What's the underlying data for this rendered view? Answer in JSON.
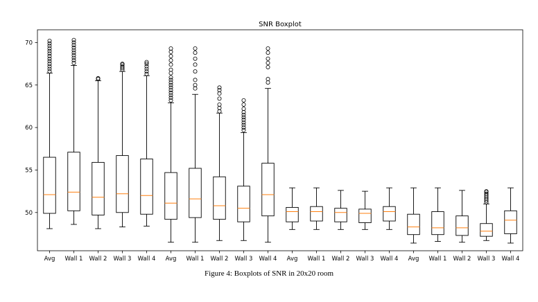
{
  "chart_data": {
    "type": "boxplot",
    "title": "SNR Boxplot",
    "xlabel": "",
    "ylabel": "",
    "ylim": [
      45.5,
      71.5
    ],
    "yticks": [
      50,
      55,
      60,
      65,
      70
    ],
    "categories": [
      "Avg",
      "Wall 1",
      "Wall 2",
      "Wall 3",
      "Wall 4",
      "Avg",
      "Wall 1",
      "Wall 2",
      "Wall 3",
      "Wall 4",
      "Avg",
      "Wall 1",
      "Wall 2",
      "Wall 3",
      "Wall 4",
      "Avg",
      "Wall 1",
      "Wall 2",
      "Wall 3",
      "Wall 4"
    ],
    "grid": false,
    "colors": {
      "box": "#000000",
      "median": "#ff7f0e",
      "outlier": "#000000"
    },
    "boxes": [
      {
        "label": "Avg",
        "whislo": 48.1,
        "q1": 49.9,
        "med": 52.1,
        "q3": 56.5,
        "whishi": 66.4,
        "fliers": [
          66.6,
          66.9,
          67.2,
          67.5,
          67.8,
          68.1,
          68.4,
          68.7,
          69.0,
          69.3,
          69.6,
          69.9,
          70.2
        ]
      },
      {
        "label": "Wall 1",
        "whislo": 48.6,
        "q1": 50.2,
        "med": 52.4,
        "q3": 57.1,
        "whishi": 67.3,
        "fliers": [
          67.6,
          67.9,
          68.2,
          68.5,
          68.8,
          69.1,
          69.4,
          69.7,
          70.0,
          70.3
        ]
      },
      {
        "label": "Wall 2",
        "whislo": 48.1,
        "q1": 49.7,
        "med": 51.8,
        "q3": 55.9,
        "whishi": 65.5,
        "fliers": [
          65.7,
          65.8
        ]
      },
      {
        "label": "Wall 3",
        "whislo": 48.3,
        "q1": 50.0,
        "med": 52.2,
        "q3": 56.7,
        "whishi": 66.6,
        "fliers": [
          66.8,
          67.0,
          67.2,
          67.4,
          67.5
        ]
      },
      {
        "label": "Wall 4",
        "whislo": 48.4,
        "q1": 49.8,
        "med": 52.0,
        "q3": 56.3,
        "whishi": 66.1,
        "fliers": [
          66.3,
          66.6,
          66.9,
          67.2,
          67.5,
          67.7
        ]
      },
      {
        "label": "Avg",
        "whislo": 46.5,
        "q1": 49.2,
        "med": 51.1,
        "q3": 54.7,
        "whishi": 62.9,
        "fliers": [
          63.2,
          63.5,
          63.8,
          64.1,
          64.4,
          64.7,
          65.0,
          65.3,
          65.6,
          65.9,
          66.4,
          66.8,
          67.4,
          67.9,
          68.4,
          68.9,
          69.3
        ]
      },
      {
        "label": "Wall 1",
        "whislo": 46.5,
        "q1": 49.4,
        "med": 51.6,
        "q3": 55.2,
        "whishi": 63.9,
        "fliers": [
          64.6,
          65.0,
          65.6,
          66.6,
          67.4,
          68.1,
          68.8,
          69.3
        ]
      },
      {
        "label": "Wall 2",
        "whislo": 46.7,
        "q1": 49.2,
        "med": 50.8,
        "q3": 54.2,
        "whishi": 61.7,
        "fliers": [
          61.9,
          62.3,
          62.7,
          63.4,
          64.0,
          64.4,
          64.7
        ]
      },
      {
        "label": "Wall 3",
        "whislo": 46.7,
        "q1": 48.9,
        "med": 50.5,
        "q3": 53.1,
        "whishi": 59.4,
        "fliers": [
          59.7,
          60.0,
          60.3,
          60.6,
          60.9,
          61.2,
          61.5,
          61.8,
          62.2,
          62.7,
          63.2
        ]
      },
      {
        "label": "Wall 4",
        "whislo": 46.5,
        "q1": 49.6,
        "med": 52.1,
        "q3": 55.8,
        "whishi": 64.6,
        "fliers": [
          65.3,
          65.7,
          67.1,
          67.6,
          68.1,
          68.8,
          69.3
        ]
      },
      {
        "label": "Avg",
        "whislo": 48.0,
        "q1": 48.9,
        "med": 50.1,
        "q3": 50.6,
        "whishi": 52.9,
        "fliers": []
      },
      {
        "label": "Wall 1",
        "whislo": 48.0,
        "q1": 49.0,
        "med": 50.1,
        "q3": 50.7,
        "whishi": 52.9,
        "fliers": []
      },
      {
        "label": "Wall 2",
        "whislo": 48.0,
        "q1": 48.9,
        "med": 50.0,
        "q3": 50.5,
        "whishi": 52.6,
        "fliers": []
      },
      {
        "label": "Wall 3",
        "whislo": 48.0,
        "q1": 48.8,
        "med": 49.9,
        "q3": 50.4,
        "whishi": 52.5,
        "fliers": []
      },
      {
        "label": "Wall 4",
        "whislo": 48.0,
        "q1": 49.0,
        "med": 50.1,
        "q3": 50.7,
        "whishi": 52.9,
        "fliers": []
      },
      {
        "label": "Avg",
        "whislo": 46.4,
        "q1": 47.4,
        "med": 48.3,
        "q3": 49.8,
        "whishi": 52.9,
        "fliers": []
      },
      {
        "label": "Wall 1",
        "whislo": 46.6,
        "q1": 47.4,
        "med": 48.2,
        "q3": 50.1,
        "whishi": 52.9,
        "fliers": []
      },
      {
        "label": "Wall 2",
        "whislo": 46.5,
        "q1": 47.3,
        "med": 48.2,
        "q3": 49.6,
        "whishi": 52.6,
        "fliers": []
      },
      {
        "label": "Wall 3",
        "whislo": 46.7,
        "q1": 47.2,
        "med": 47.8,
        "q3": 48.7,
        "whishi": 51.0,
        "fliers": [
          51.2,
          51.4,
          51.6,
          51.8,
          52.0,
          52.2,
          52.4,
          52.5
        ]
      },
      {
        "label": "Wall 4",
        "whislo": 46.4,
        "q1": 47.5,
        "med": 49.1,
        "q3": 50.2,
        "whishi": 52.9,
        "fliers": []
      }
    ]
  },
  "caption": "Figure 4: Boxplots of SNR in 20x20 room"
}
